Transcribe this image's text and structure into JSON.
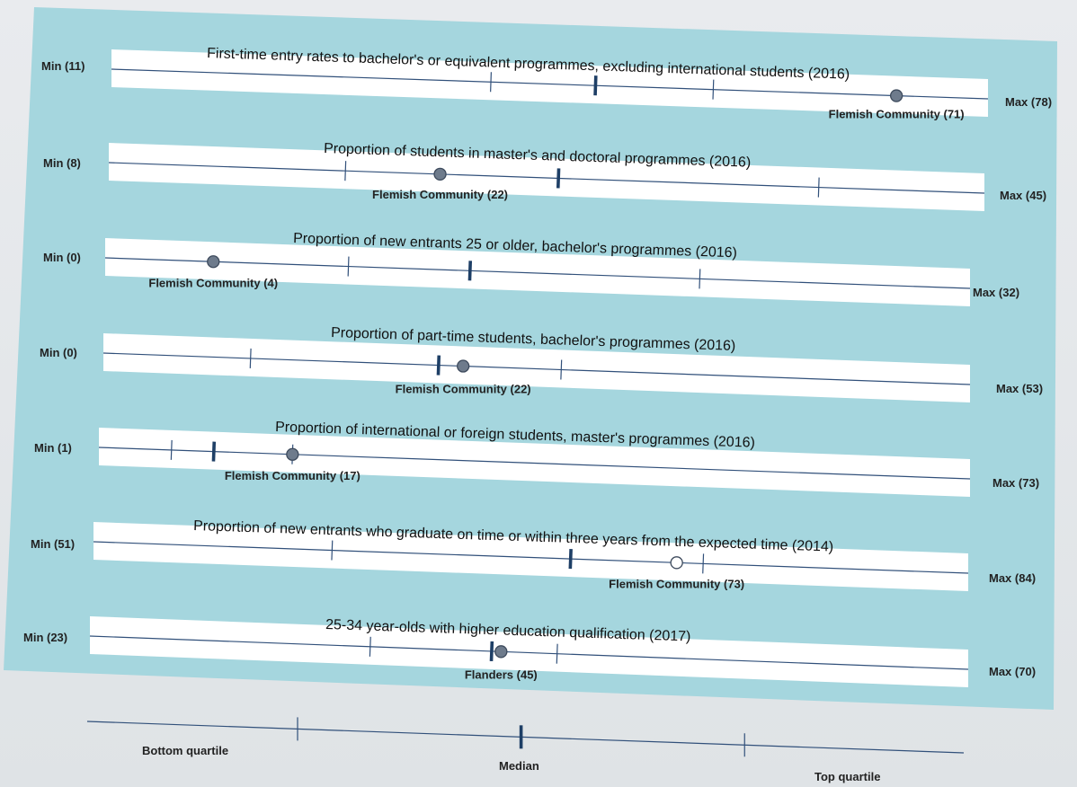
{
  "colors": {
    "panel": "#a5d6de",
    "band": "#ffffff",
    "axis": "#31507a",
    "median": "#1e3f66",
    "marker_fill": "#6e7b8c",
    "marker_open": "#ffffff"
  },
  "chart_data": [
    {
      "type": "dot",
      "title": "First-time entry rates to bachelor's or equivalent programmes, excluding international students (2016)",
      "min": 11,
      "max": 78,
      "min_label": "Min (11)",
      "max_label": "Max (78)",
      "bottom_quartile": 40,
      "median": 48,
      "top_quartile": 57,
      "value": 71,
      "value_label": "Flemish Community (71)",
      "marker": "filled"
    },
    {
      "type": "dot",
      "title": "Proportion of students in master's and doctoral programmes (2016)",
      "min": 8,
      "max": 45,
      "min_label": "Min (8)",
      "max_label": "Max (45)",
      "bottom_quartile": 18,
      "median": 27,
      "top_quartile": 38,
      "value": 22,
      "value_label": "Flemish Community (22)",
      "marker": "filled"
    },
    {
      "type": "dot",
      "title": "Proportion of new entrants 25 or older, bachelor's programmes (2016)",
      "min": 0,
      "max": 32,
      "min_label": "Min (0)",
      "max_label": "Max (32)",
      "bottom_quartile": 9,
      "median": 13.5,
      "top_quartile": 22,
      "value": 4,
      "value_label": "Flemish Community (4)",
      "marker": "filled"
    },
    {
      "type": "dot",
      "title": "Proportion of part-time students, bachelor's programmes (2016)",
      "min": 0,
      "max": 53,
      "min_label": "Min (0)",
      "max_label": "Max (53)",
      "bottom_quartile": 9,
      "median": 20.5,
      "top_quartile": 28,
      "value": 22,
      "value_label": "Flemish Community (22)",
      "marker": "filled"
    },
    {
      "type": "dot",
      "title": "Proportion of international or foreign students, master's programmes (2016)",
      "min": 1,
      "max": 73,
      "min_label": "Min (1)",
      "max_label": "Max (73)",
      "bottom_quartile": 7,
      "median": 10.5,
      "top_quartile": 17,
      "value": 17,
      "value_label": "Flemish Community (17)",
      "marker": "filled"
    },
    {
      "type": "dot",
      "title": "Proportion of new entrants who graduate on time or within three years from the expected time (2014)",
      "min": 51,
      "max": 84,
      "min_label": "Min (51)",
      "max_label": "Max (84)",
      "bottom_quartile": 60,
      "median": 69,
      "top_quartile": 74,
      "value": 73,
      "value_label": "Flemish Community (73)",
      "marker": "open"
    },
    {
      "type": "dot",
      "title": "25-34 year-olds with higher education qualification (2017)",
      "min": 23,
      "max": 70,
      "min_label": "Min (23)",
      "max_label": "Max (70)",
      "bottom_quartile": 38,
      "median": 44.5,
      "top_quartile": 48,
      "value": 45,
      "value_label": "Flanders (45)",
      "marker": "filled"
    }
  ],
  "legend": {
    "bottom_quartile": "Bottom quartile",
    "median": "Median",
    "top_quartile": "Top quartile"
  }
}
